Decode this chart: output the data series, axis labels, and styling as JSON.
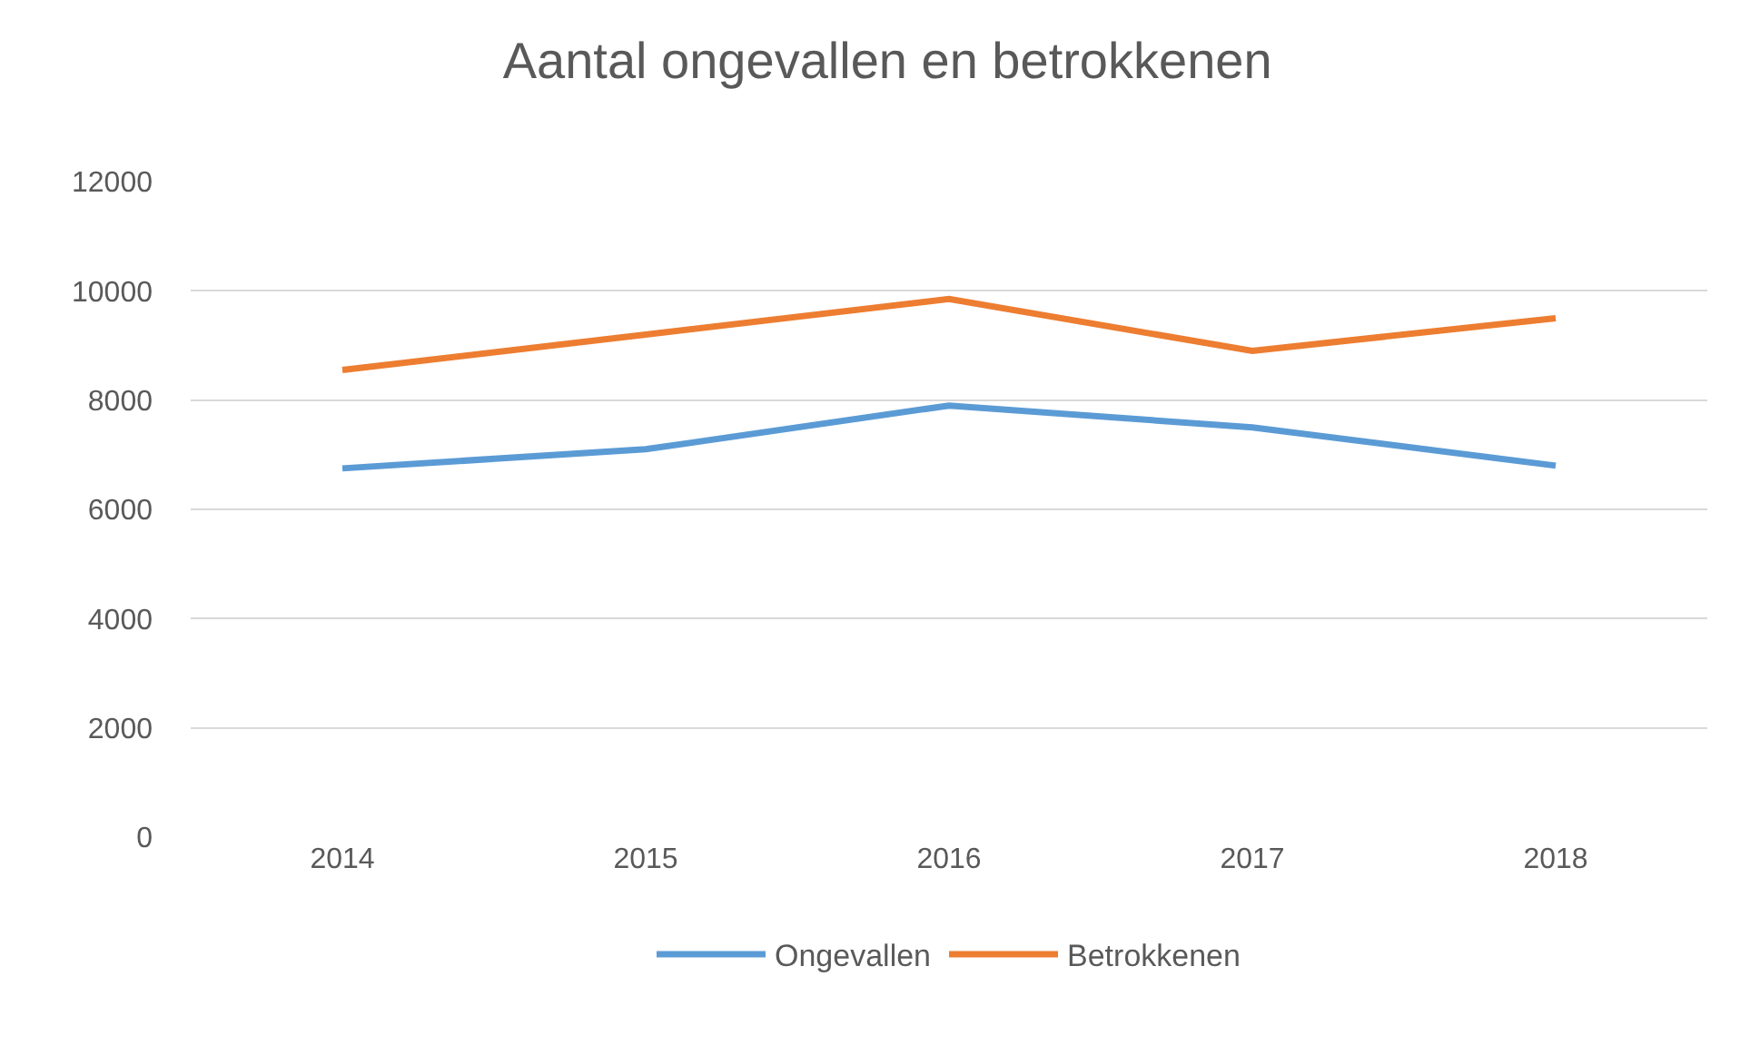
{
  "chart_data": {
    "type": "line",
    "title": "Aantal ongevallen en betrokkenen",
    "categories": [
      "2014",
      "2015",
      "2016",
      "2017",
      "2018"
    ],
    "series": [
      {
        "name": "Ongevallen",
        "color": "#5b9bd5",
        "values": [
          6750,
          7100,
          7900,
          7500,
          6800
        ]
      },
      {
        "name": "Betrokkenen",
        "color": "#ed7d31",
        "values": [
          8550,
          9200,
          9850,
          8900,
          9500
        ]
      }
    ],
    "ylim": [
      0,
      12000
    ],
    "yticks": [
      0,
      2000,
      4000,
      6000,
      8000,
      10000,
      12000
    ],
    "grid": "y",
    "legend": "bottom",
    "marker": "none",
    "line_style": "solid"
  }
}
